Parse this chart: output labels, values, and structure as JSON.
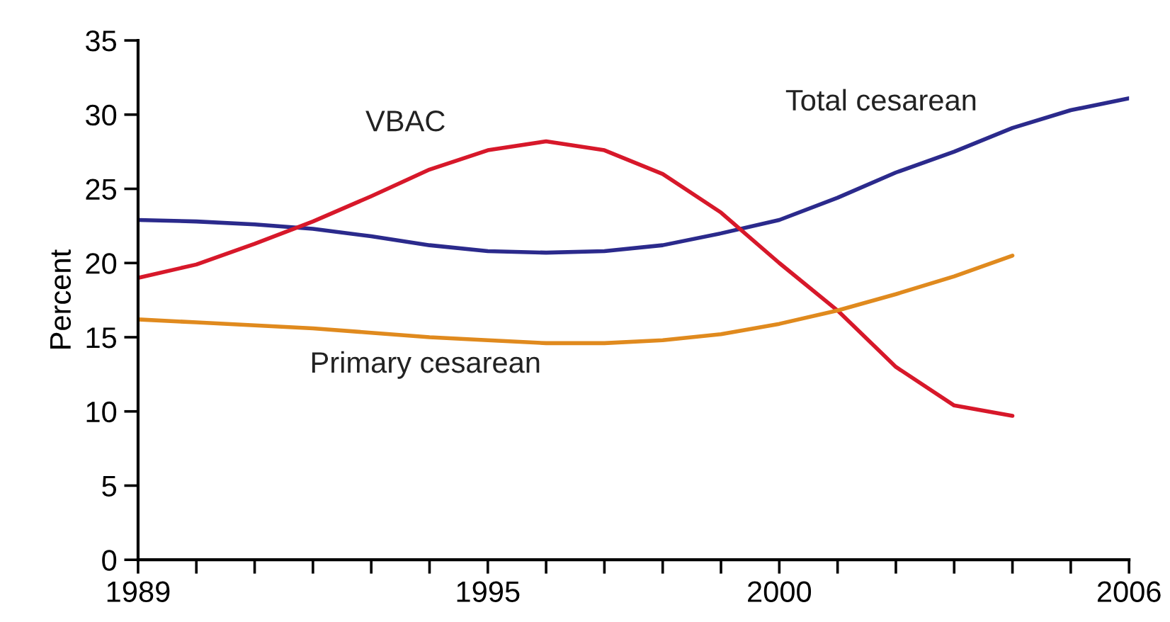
{
  "chart_data": {
    "type": "line",
    "ylabel": "Percent",
    "xlim": [
      1989,
      2006
    ],
    "ylim": [
      0,
      35
    ],
    "xticks": [
      1989,
      {
        "value": 1990,
        "label": null
      },
      {
        "value": 1991,
        "label": null
      },
      {
        "value": 1992,
        "label": null
      },
      {
        "value": 1993,
        "label": null
      },
      {
        "value": 1994,
        "label": null
      },
      1995,
      {
        "value": 1996,
        "label": null
      },
      {
        "value": 1997,
        "label": null
      },
      {
        "value": 1998,
        "label": null
      },
      {
        "value": 1999,
        "label": null
      },
      2000,
      {
        "value": 2001,
        "label": null
      },
      {
        "value": 2002,
        "label": null
      },
      {
        "value": 2003,
        "label": null
      },
      {
        "value": 2004,
        "label": null
      },
      {
        "value": 2005,
        "label": null
      },
      2006
    ],
    "yticks": [
      0,
      5,
      10,
      15,
      20,
      25,
      30,
      35
    ],
    "grid": false,
    "legend": false,
    "marker": "none",
    "line_style": "solid",
    "series": [
      {
        "name": "Total cesarean",
        "color": "#2b2a8c",
        "x": [
          1989,
          1990,
          1991,
          1992,
          1993,
          1994,
          1995,
          1996,
          1997,
          1998,
          1999,
          2000,
          2001,
          2002,
          2003,
          2004,
          2005,
          2006
        ],
        "values": [
          22.9,
          22.8,
          22.6,
          22.3,
          21.8,
          21.2,
          20.8,
          20.7,
          20.8,
          21.2,
          22.0,
          22.9,
          24.4,
          26.1,
          27.5,
          29.1,
          30.3,
          31.1
        ]
      },
      {
        "name": "VBAC",
        "color": "#d7182a",
        "x": [
          1989,
          1990,
          1991,
          1992,
          1993,
          1994,
          1995,
          1996,
          1997,
          1998,
          1999,
          2000,
          2001,
          2002,
          2003,
          2004
        ],
        "values": [
          19.0,
          19.9,
          21.3,
          22.8,
          24.5,
          26.3,
          27.6,
          28.2,
          27.6,
          26.0,
          23.4,
          20.0,
          16.8,
          13.0,
          10.4,
          9.7
        ]
      },
      {
        "name": "Primary cesarean",
        "color": "#e08a1e",
        "x": [
          1989,
          1990,
          1991,
          1992,
          1993,
          1994,
          1995,
          1996,
          1997,
          1998,
          1999,
          2000,
          2001,
          2002,
          2003,
          2004
        ],
        "values": [
          16.2,
          16.0,
          15.8,
          15.6,
          15.3,
          15.0,
          14.8,
          14.6,
          14.6,
          14.8,
          15.2,
          15.9,
          16.8,
          17.9,
          19.1,
          20.5
        ]
      }
    ]
  }
}
